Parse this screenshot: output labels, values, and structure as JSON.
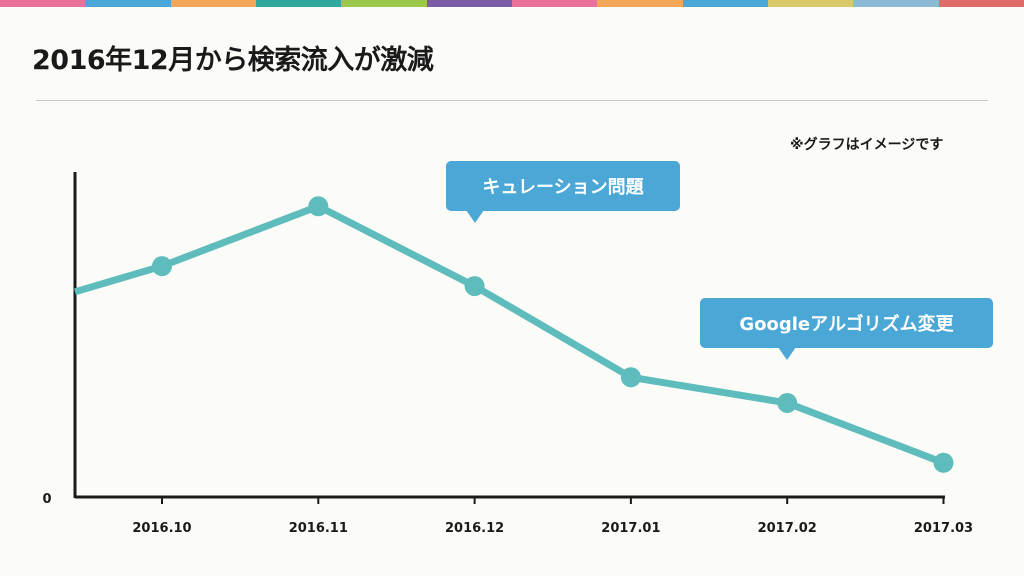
{
  "header": {
    "title": "2016年12月から検索流入が激減",
    "stripe_colors": [
      "#e8709a",
      "#4aa7d6",
      "#f2a65a",
      "#2fa89e",
      "#9bc74a",
      "#7b5ba6",
      "#e8709a",
      "#f2a65a",
      "#4aa7d6",
      "#d8c96a",
      "#8bb9d6",
      "#e06b6b"
    ]
  },
  "note": "※グラフはイメージです",
  "callouts": {
    "curation": "キュレーション問題",
    "google": "Googleアルゴリズム変更"
  },
  "colors": {
    "line": "#5fbcbd",
    "axis": "#1a1a1a",
    "callout": "#4aa7d6"
  },
  "chart_data": {
    "type": "line",
    "title": "2016年12月から検索流入が激減",
    "categories": [
      "2016.10",
      "2016.11",
      "2016.12",
      "2017.01",
      "2017.02",
      "2017.03"
    ],
    "x_start_value": 72,
    "values": [
      81,
      102,
      74,
      42,
      33,
      12
    ],
    "y_tick_labels": [
      "0"
    ],
    "ylim": [
      0,
      100
    ],
    "grid": false,
    "xlabel": "",
    "ylabel": ""
  }
}
